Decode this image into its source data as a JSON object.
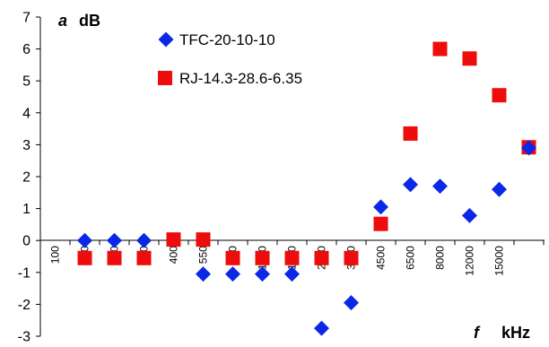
{
  "chart_data": {
    "type": "scatter",
    "categories": [
      "100",
      "150",
      "200",
      "280",
      "400",
      "550",
      "800",
      "1000",
      "1600",
      "2000",
      "3500",
      "4500",
      "6500",
      "8000",
      "12000",
      "15000",
      ""
    ],
    "series": [
      {
        "name": "TFC-20-10-10",
        "values": [
          null,
          0,
          0,
          0,
          null,
          -1.05,
          -1.05,
          -1.05,
          -1.05,
          -2.75,
          -1.95,
          1.05,
          1.75,
          1.7,
          0.78,
          1.6,
          2.9
        ],
        "color": "#0a28e6",
        "marker": "diamond"
      },
      {
        "name": "RJ-14.3-28.6-6.35",
        "values": [
          null,
          -0.55,
          -0.55,
          -0.55,
          0.03,
          0.03,
          -0.55,
          -0.55,
          -0.55,
          -0.55,
          -0.55,
          0.52,
          3.35,
          6.0,
          5.7,
          4.55,
          2.92
        ],
        "color": "#ee0c0c",
        "marker": "square"
      }
    ],
    "y_axis": {
      "symbol": "a",
      "unit": "dB",
      "ticks": [
        "7",
        "6",
        "5",
        "4",
        "3",
        "2",
        "1",
        "0",
        "-1",
        "-2",
        "-3"
      ]
    },
    "x_axis": {
      "symbol": "f",
      "unit": "kHz"
    },
    "ylim": [
      -3,
      7
    ],
    "grid": false,
    "legend_position": "top-center"
  }
}
